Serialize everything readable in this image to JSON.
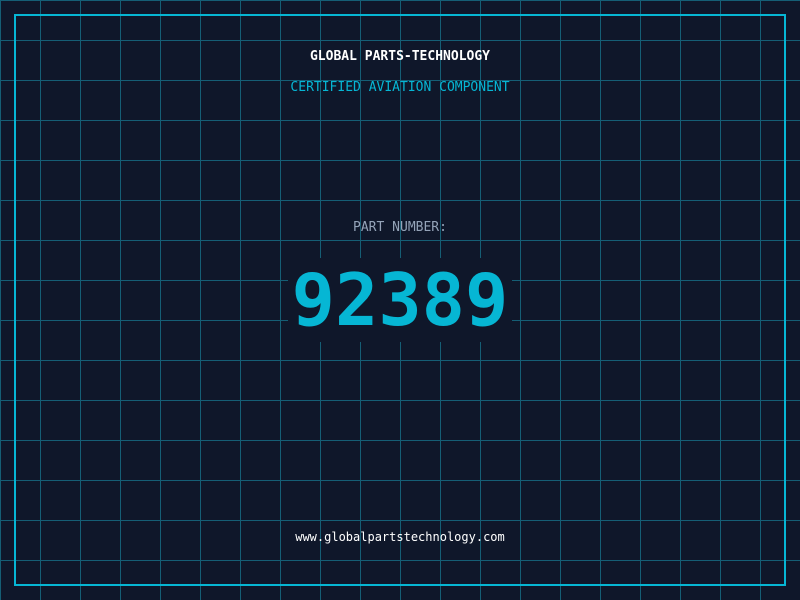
{
  "header": {
    "company": "GLOBAL PARTS-TECHNOLOGY",
    "subtitle": "CERTIFIED AVIATION COMPONENT"
  },
  "part": {
    "label": "PART NUMBER:",
    "number": "92389"
  },
  "footer": {
    "url": "www.globalpartstechnology.com"
  },
  "colors": {
    "background": "#0f172a",
    "accent": "#06b6d4",
    "grid": "#155e75",
    "label": "#94a3b8"
  }
}
